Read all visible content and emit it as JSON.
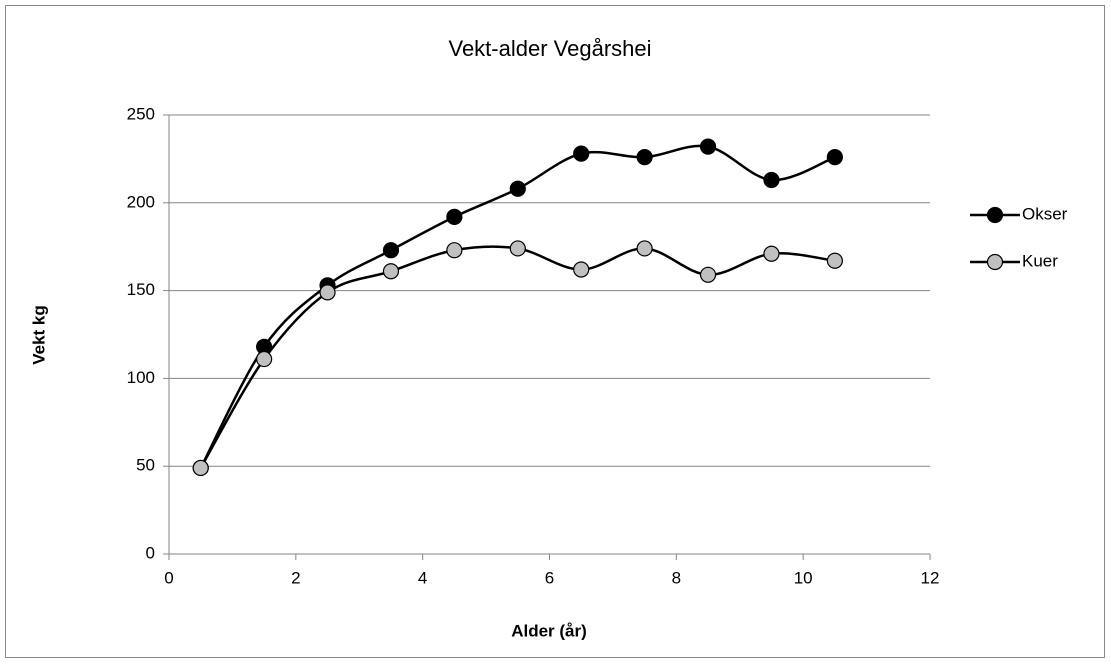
{
  "chart_data": {
    "type": "scatter",
    "title": "Vekt-alder Vegårshei",
    "x_label": "Alder (år)",
    "y_label": "Vekt kg",
    "x": [
      0.5,
      1.5,
      2.5,
      3.5,
      4.5,
      5.5,
      6.5,
      7.5,
      8.5,
      9.5,
      10.5
    ],
    "series": [
      {
        "name": "Okser",
        "color": "#000000",
        "values": [
          49,
          118,
          153,
          173,
          192,
          208,
          228,
          226,
          232,
          213,
          226
        ]
      },
      {
        "name": "Kuer",
        "color": "#c0c0c0",
        "values": [
          49,
          111,
          149,
          161,
          173,
          174,
          162,
          174,
          159,
          171,
          167
        ]
      }
    ],
    "xlim": [
      0,
      12
    ],
    "xticks": [
      0,
      2,
      4,
      6,
      8,
      10,
      12
    ],
    "ylim": [
      0,
      250
    ],
    "yticks": [
      0,
      50,
      100,
      150,
      200,
      250
    ],
    "grid": true,
    "smooth": true,
    "line_color": "#000000",
    "legend_position": "right"
  }
}
